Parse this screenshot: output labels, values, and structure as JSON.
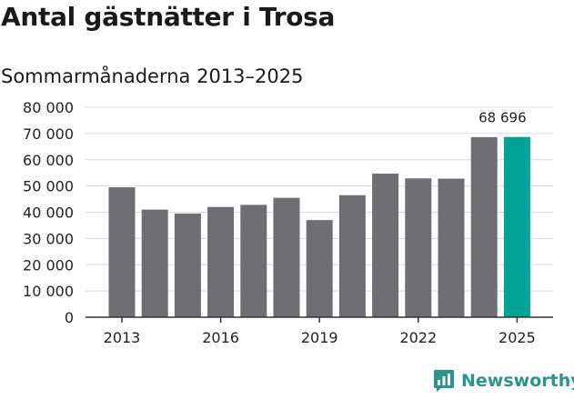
{
  "title": "Antal gästnätter i Trosa",
  "subtitle": "Sommarmånaderna 2013–2025",
  "brand": {
    "name": "Newsworthy",
    "icon": "bar-chart-logo-icon"
  },
  "colors": {
    "bar": "#6e6d72",
    "highlight": "#00a497",
    "grid": "#d9d9d9",
    "axis": "#333333",
    "brand": "#2b958a"
  },
  "chart_data": {
    "type": "bar",
    "categories": [
      "2013",
      "2014",
      "2015",
      "2016",
      "2017",
      "2018",
      "2019",
      "2020",
      "2021",
      "2022",
      "2023",
      "2024",
      "2025"
    ],
    "values": [
      49500,
      41000,
      39500,
      42000,
      42800,
      45500,
      37000,
      46500,
      54700,
      52900,
      52800,
      68600,
      68696
    ],
    "x_tick_labels": [
      "2013",
      "2016",
      "2019",
      "2022",
      "2025"
    ],
    "y_tick_labels": [
      "0",
      "10 000",
      "20 000",
      "30 000",
      "40 000",
      "50 000",
      "60 000",
      "70 000",
      "80 000"
    ],
    "ylim": [
      0,
      80000
    ],
    "y_ticks": [
      0,
      10000,
      20000,
      30000,
      40000,
      50000,
      60000,
      70000,
      80000
    ],
    "highlight_category": "2025",
    "annotation": {
      "category": "2025",
      "text": "68 696"
    },
    "grid": true,
    "legend": "none"
  }
}
